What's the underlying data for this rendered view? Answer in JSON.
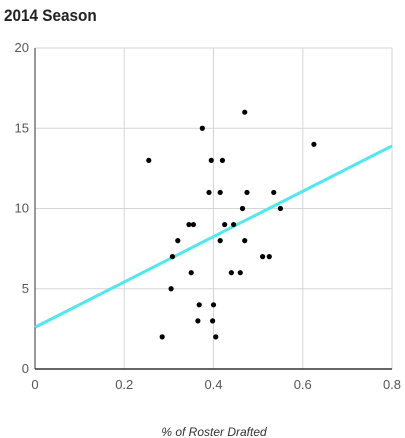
{
  "chart_data": {
    "type": "scatter",
    "title": "2014 Season",
    "xlabel": "% of Roster Drafted",
    "ylabel": "",
    "xlim": [
      0,
      0.8
    ],
    "ylim": [
      0,
      20
    ],
    "x_ticks": [
      "0",
      "0.2",
      "0.4",
      "0.6",
      "0.8"
    ],
    "y_ticks": [
      "0",
      "5",
      "10",
      "15",
      "20"
    ],
    "grid": true,
    "legend": "none",
    "points": [
      {
        "x": 0.255,
        "y": 13
      },
      {
        "x": 0.285,
        "y": 2
      },
      {
        "x": 0.305,
        "y": 5
      },
      {
        "x": 0.308,
        "y": 7
      },
      {
        "x": 0.32,
        "y": 8
      },
      {
        "x": 0.345,
        "y": 9
      },
      {
        "x": 0.355,
        "y": 9
      },
      {
        "x": 0.35,
        "y": 6
      },
      {
        "x": 0.365,
        "y": 3
      },
      {
        "x": 0.368,
        "y": 4
      },
      {
        "x": 0.375,
        "y": 15
      },
      {
        "x": 0.39,
        "y": 11
      },
      {
        "x": 0.395,
        "y": 13
      },
      {
        "x": 0.398,
        "y": 3
      },
      {
        "x": 0.4,
        "y": 4
      },
      {
        "x": 0.405,
        "y": 2
      },
      {
        "x": 0.415,
        "y": 8
      },
      {
        "x": 0.415,
        "y": 11
      },
      {
        "x": 0.42,
        "y": 13
      },
      {
        "x": 0.425,
        "y": 9
      },
      {
        "x": 0.44,
        "y": 6
      },
      {
        "x": 0.445,
        "y": 9
      },
      {
        "x": 0.46,
        "y": 6
      },
      {
        "x": 0.465,
        "y": 10
      },
      {
        "x": 0.47,
        "y": 8
      },
      {
        "x": 0.47,
        "y": 16
      },
      {
        "x": 0.475,
        "y": 11
      },
      {
        "x": 0.51,
        "y": 7
      },
      {
        "x": 0.525,
        "y": 7
      },
      {
        "x": 0.535,
        "y": 11
      },
      {
        "x": 0.55,
        "y": 10
      },
      {
        "x": 0.625,
        "y": 14
      }
    ],
    "trendline": {
      "x": [
        0,
        0.8
      ],
      "y": [
        2.6,
        13.9
      ]
    },
    "colors": {
      "points": "#000000",
      "trendline": "#4ee8ef",
      "grid": "#d5d5d5",
      "axis": "#333333"
    }
  }
}
